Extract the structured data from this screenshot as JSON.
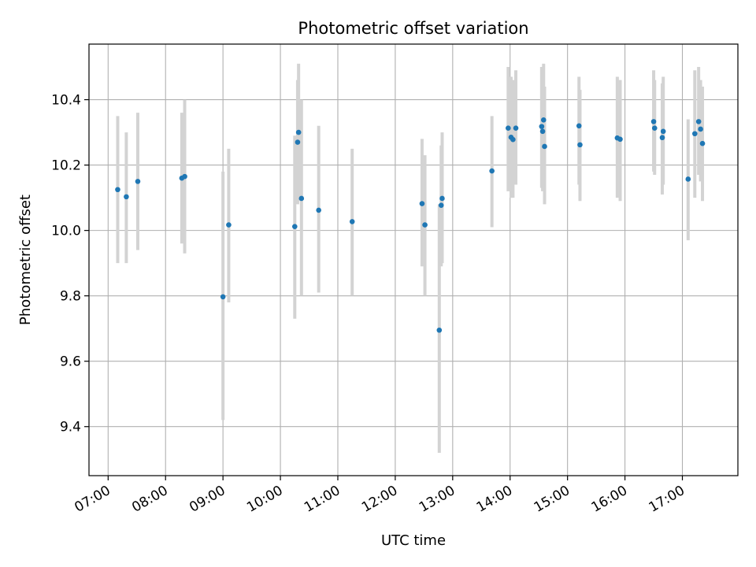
{
  "chart_data": {
    "type": "scatter",
    "title": "Photometric offset variation",
    "xlabel": "UTC time",
    "ylabel": "Photometric offset",
    "xlim": [
      "06:40",
      "17:58"
    ],
    "ylim": [
      9.25,
      10.57
    ],
    "grid": true,
    "x_ticks": [
      "07:00",
      "08:00",
      "09:00",
      "10:00",
      "11:00",
      "12:00",
      "13:00",
      "14:00",
      "15:00",
      "16:00",
      "17:00"
    ],
    "y_ticks": [
      9.4,
      9.6,
      9.8,
      10.0,
      10.2,
      10.4
    ],
    "y_tick_labels": [
      "9.4",
      "9.6",
      "9.8",
      "10.0",
      "10.2",
      "10.4"
    ],
    "marker_color": "#1f77b4",
    "errorbar_color": "#d3d3d3",
    "points": [
      {
        "t": "07:10",
        "y": 10.125,
        "lo": 9.9,
        "hi": 10.35
      },
      {
        "t": "07:19",
        "y": 10.103,
        "lo": 9.9,
        "hi": 10.3
      },
      {
        "t": "07:31",
        "y": 10.15,
        "lo": 9.94,
        "hi": 10.36
      },
      {
        "t": "08:17",
        "y": 10.16,
        "lo": 9.96,
        "hi": 10.36
      },
      {
        "t": "08:20",
        "y": 10.165,
        "lo": 9.93,
        "hi": 10.4
      },
      {
        "t": "09:00",
        "y": 9.797,
        "lo": 9.42,
        "hi": 10.18
      },
      {
        "t": "09:06",
        "y": 10.017,
        "lo": 9.78,
        "hi": 10.25
      },
      {
        "t": "10:15",
        "y": 10.012,
        "lo": 9.73,
        "hi": 10.29
      },
      {
        "t": "10:18",
        "y": 10.27,
        "lo": 10.08,
        "hi": 10.46
      },
      {
        "t": "10:19",
        "y": 10.3,
        "lo": 10.09,
        "hi": 10.51
      },
      {
        "t": "10:22",
        "y": 10.098,
        "lo": 9.8,
        "hi": 10.4
      },
      {
        "t": "10:40",
        "y": 10.062,
        "lo": 9.81,
        "hi": 10.32
      },
      {
        "t": "11:15",
        "y": 10.027,
        "lo": 9.8,
        "hi": 10.25
      },
      {
        "t": "12:28",
        "y": 10.082,
        "lo": 9.89,
        "hi": 10.28
      },
      {
        "t": "12:31",
        "y": 10.017,
        "lo": 9.8,
        "hi": 10.23
      },
      {
        "t": "12:46",
        "y": 9.695,
        "lo": 9.32,
        "hi": 10.08
      },
      {
        "t": "12:48",
        "y": 10.077,
        "lo": 9.89,
        "hi": 10.26
      },
      {
        "t": "12:49",
        "y": 10.098,
        "lo": 9.9,
        "hi": 10.3
      },
      {
        "t": "13:41",
        "y": 10.182,
        "lo": 10.01,
        "hi": 10.35
      },
      {
        "t": "13:58",
        "y": 10.313,
        "lo": 10.12,
        "hi": 10.5
      },
      {
        "t": "14:01",
        "y": 10.285,
        "lo": 10.1,
        "hi": 10.47
      },
      {
        "t": "14:03",
        "y": 10.278,
        "lo": 10.1,
        "hi": 10.46
      },
      {
        "t": "14:06",
        "y": 10.313,
        "lo": 10.14,
        "hi": 10.49
      },
      {
        "t": "14:33",
        "y": 10.318,
        "lo": 10.13,
        "hi": 10.5
      },
      {
        "t": "14:34",
        "y": 10.303,
        "lo": 10.12,
        "hi": 10.48
      },
      {
        "t": "14:35",
        "y": 10.338,
        "lo": 10.16,
        "hi": 10.51
      },
      {
        "t": "14:36",
        "y": 10.257,
        "lo": 10.08,
        "hi": 10.44
      },
      {
        "t": "15:12",
        "y": 10.32,
        "lo": 10.14,
        "hi": 10.47
      },
      {
        "t": "15:13",
        "y": 10.262,
        "lo": 10.09,
        "hi": 10.43
      },
      {
        "t": "15:52",
        "y": 10.283,
        "lo": 10.1,
        "hi": 10.47
      },
      {
        "t": "15:55",
        "y": 10.279,
        "lo": 10.09,
        "hi": 10.46
      },
      {
        "t": "16:30",
        "y": 10.333,
        "lo": 10.18,
        "hi": 10.49
      },
      {
        "t": "16:31",
        "y": 10.313,
        "lo": 10.17,
        "hi": 10.46
      },
      {
        "t": "16:39",
        "y": 10.284,
        "lo": 10.11,
        "hi": 10.45
      },
      {
        "t": "16:40",
        "y": 10.303,
        "lo": 10.14,
        "hi": 10.47
      },
      {
        "t": "17:06",
        "y": 10.157,
        "lo": 9.97,
        "hi": 10.34
      },
      {
        "t": "17:13",
        "y": 10.296,
        "lo": 10.1,
        "hi": 10.49
      },
      {
        "t": "17:17",
        "y": 10.333,
        "lo": 10.17,
        "hi": 10.5
      },
      {
        "t": "17:19",
        "y": 10.31,
        "lo": 10.15,
        "hi": 10.46
      },
      {
        "t": "17:21",
        "y": 10.266,
        "lo": 10.09,
        "hi": 10.44
      }
    ]
  }
}
